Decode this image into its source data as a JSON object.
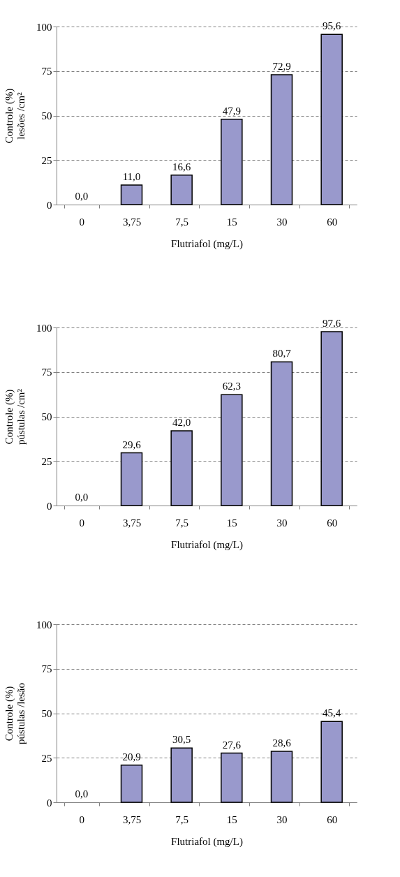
{
  "chart_data": [
    {
      "type": "bar",
      "categories": [
        "0",
        "3,75",
        "7,5",
        "15",
        "30",
        "60"
      ],
      "values": [
        0.0,
        11.0,
        16.6,
        47.9,
        72.9,
        95.6
      ],
      "value_labels": [
        "0,0",
        "11,0",
        "16,6",
        "47,9",
        "72,9",
        "95,6"
      ],
      "color": "#9999cc",
      "xlabel": "Flutriafol (mg/L)",
      "ylabel": "Controle (%)\nlesões /cm²",
      "ylim": [
        0,
        100
      ],
      "yticks": [
        0,
        25,
        50,
        75,
        100
      ],
      "grid": "y"
    },
    {
      "type": "bar",
      "categories": [
        "0",
        "3,75",
        "7,5",
        "15",
        "30",
        "60"
      ],
      "values": [
        0.0,
        29.6,
        42.0,
        62.3,
        80.7,
        97.6
      ],
      "value_labels": [
        "0,0",
        "29,6",
        "42,0",
        "62,3",
        "80,7",
        "97,6"
      ],
      "color": "#9999cc",
      "xlabel": "Flutriafol (mg/L)",
      "ylabel": "Controle (%)\npústulas /cm²",
      "ylim": [
        0,
        100
      ],
      "yticks": [
        0,
        25,
        50,
        75,
        100
      ],
      "grid": "y"
    },
    {
      "type": "bar",
      "categories": [
        "0",
        "3,75",
        "7,5",
        "15",
        "30",
        "60"
      ],
      "values": [
        0.0,
        20.9,
        30.5,
        27.6,
        28.6,
        45.4
      ],
      "value_labels": [
        "0,0",
        "20,9",
        "30,5",
        "27,6",
        "28,6",
        "45,4"
      ],
      "color": "#9999cc",
      "xlabel": "Flutriafol (mg/L)",
      "ylabel": "Controle (%)\npústulas /lesão",
      "ylim": [
        0,
        100
      ],
      "yticks": [
        0,
        25,
        50,
        75,
        100
      ],
      "grid": "y"
    }
  ]
}
